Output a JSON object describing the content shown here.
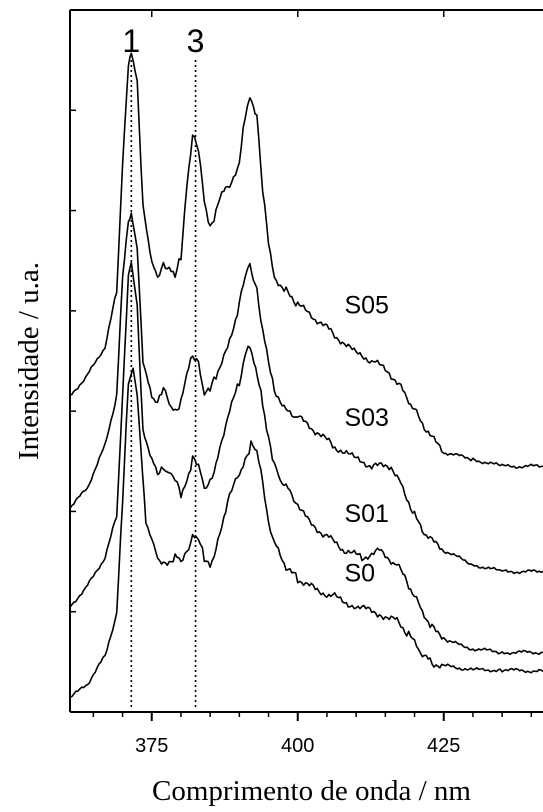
{
  "chart_data": {
    "type": "line",
    "xlabel": "Comprimento de onda / nm",
    "ylabel": "Intensidade / u.a.",
    "xlim": [
      361,
      442
    ],
    "ylim": [
      0,
      1
    ],
    "xticks": [
      375,
      400,
      425
    ],
    "minor_xticks": [
      365,
      370,
      380,
      385,
      390,
      395,
      405,
      410,
      415,
      420,
      430,
      435,
      440
    ],
    "y_tick_labels_shown": false,
    "grid": false,
    "colors": {
      "line": "#000000",
      "background": "#ffffff"
    },
    "reference_lines": [
      {
        "label": "1",
        "x": 371.5,
        "style": "dotted"
      },
      {
        "label": "3",
        "x": 382.5,
        "style": "dotted"
      }
    ],
    "series": [
      {
        "name": "S0",
        "x": [
          361,
          364,
          367,
          369,
          370,
          371,
          371.8,
          372.5,
          374,
          376,
          378,
          379,
          380,
          381,
          382,
          383,
          384,
          385,
          386,
          388,
          390,
          391,
          392,
          393,
          394,
          395,
          396,
          398,
          400,
          403,
          406,
          410,
          414,
          417,
          419,
          421,
          423,
          426,
          430,
          435,
          442
        ],
        "y": [
          0.02,
          0.04,
          0.08,
          0.14,
          0.3,
          0.47,
          0.49,
          0.45,
          0.27,
          0.22,
          0.21,
          0.22,
          0.215,
          0.23,
          0.25,
          0.245,
          0.22,
          0.21,
          0.23,
          0.3,
          0.34,
          0.36,
          0.38,
          0.37,
          0.33,
          0.27,
          0.24,
          0.205,
          0.19,
          0.175,
          0.165,
          0.15,
          0.14,
          0.13,
          0.11,
          0.085,
          0.07,
          0.065,
          0.06,
          0.06,
          0.058
        ]
      },
      {
        "name": "S01",
        "x": [
          361,
          364,
          367,
          369,
          370,
          371,
          371.5,
          372.5,
          373.5,
          375,
          376,
          377,
          378,
          379,
          380,
          381,
          382,
          383,
          384,
          385,
          386,
          388,
          390,
          391,
          391.5,
          392.5,
          394,
          395,
          396,
          397,
          399,
          402,
          405,
          408,
          411,
          414,
          417,
          419,
          421,
          423,
          426,
          430,
          435,
          442
        ],
        "y": [
          0.15,
          0.18,
          0.22,
          0.28,
          0.45,
          0.62,
          0.64,
          0.58,
          0.4,
          0.36,
          0.34,
          0.35,
          0.34,
          0.33,
          0.31,
          0.33,
          0.36,
          0.35,
          0.32,
          0.33,
          0.35,
          0.42,
          0.47,
          0.51,
          0.52,
          0.5,
          0.44,
          0.39,
          0.35,
          0.33,
          0.31,
          0.27,
          0.25,
          0.23,
          0.22,
          0.23,
          0.21,
          0.18,
          0.15,
          0.12,
          0.1,
          0.09,
          0.085,
          0.085
        ]
      },
      {
        "name": "S03",
        "x": [
          361,
          364,
          367,
          369,
          370,
          371,
          371.5,
          372.5,
          373.5,
          375,
          376,
          377,
          378,
          379,
          380,
          381,
          382,
          383,
          384,
          385,
          386,
          388,
          390,
          391,
          391.8,
          393,
          394,
          395,
          396,
          398,
          400,
          403,
          406,
          410,
          413,
          416,
          418,
          420,
          422,
          425,
          430,
          435,
          442
        ],
        "y": [
          0.29,
          0.32,
          0.38,
          0.45,
          0.62,
          0.7,
          0.71,
          0.66,
          0.5,
          0.45,
          0.44,
          0.46,
          0.44,
          0.43,
          0.44,
          0.48,
          0.51,
          0.5,
          0.45,
          0.46,
          0.48,
          0.52,
          0.58,
          0.62,
          0.64,
          0.6,
          0.54,
          0.5,
          0.46,
          0.43,
          0.42,
          0.4,
          0.38,
          0.36,
          0.35,
          0.35,
          0.32,
          0.28,
          0.25,
          0.23,
          0.21,
          0.2,
          0.2
        ]
      },
      {
        "name": "S05",
        "x": [
          361,
          364,
          367,
          369,
          370,
          371,
          371.5,
          372.5,
          373.5,
          375,
          376,
          377,
          378,
          379,
          380,
          381,
          382,
          383,
          384,
          385,
          386,
          387,
          388,
          389,
          390,
          391,
          391.8,
          393,
          394,
          395,
          396,
          398,
          400,
          403,
          406,
          410,
          413,
          416,
          418,
          420,
          422,
          425,
          430,
          435,
          442
        ],
        "y": [
          0.45,
          0.48,
          0.52,
          0.6,
          0.78,
          0.92,
          0.94,
          0.9,
          0.72,
          0.64,
          0.62,
          0.64,
          0.63,
          0.62,
          0.65,
          0.75,
          0.82,
          0.8,
          0.73,
          0.69,
          0.71,
          0.74,
          0.75,
          0.76,
          0.78,
          0.85,
          0.88,
          0.85,
          0.74,
          0.67,
          0.62,
          0.6,
          0.58,
          0.56,
          0.54,
          0.51,
          0.5,
          0.48,
          0.46,
          0.43,
          0.4,
          0.37,
          0.36,
          0.35,
          0.35
        ]
      }
    ]
  }
}
